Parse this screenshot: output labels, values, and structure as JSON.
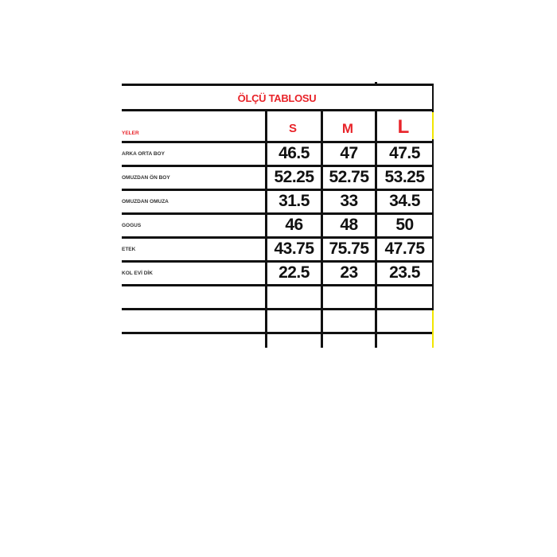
{
  "table": {
    "title": "ÖLÇÜ TABLOSU",
    "header_label": "YELER",
    "sizes": [
      "S",
      "M",
      "L"
    ],
    "rows": [
      {
        "label": "ARKA ORTA BOY",
        "values": [
          "46.5",
          "47",
          "47.5"
        ]
      },
      {
        "label": "OMUZDAN ÖN BOY",
        "values": [
          "52.25",
          "52.75",
          "53.25"
        ]
      },
      {
        "label": "OMUZDAN OMUZA",
        "values": [
          "31.5",
          "33",
          "34.5"
        ]
      },
      {
        "label": "GOGUS",
        "values": [
          "46",
          "48",
          "50"
        ]
      },
      {
        "label": "ETEK",
        "values": [
          "43.75",
          "75.75",
          "47.75"
        ]
      },
      {
        "label": "KOL EVİ DİK",
        "values": [
          "22.5",
          "23",
          "23.5"
        ]
      }
    ],
    "colors": {
      "title": "#e8242a",
      "grid": "#111111",
      "highlight": "#f2e600"
    }
  }
}
